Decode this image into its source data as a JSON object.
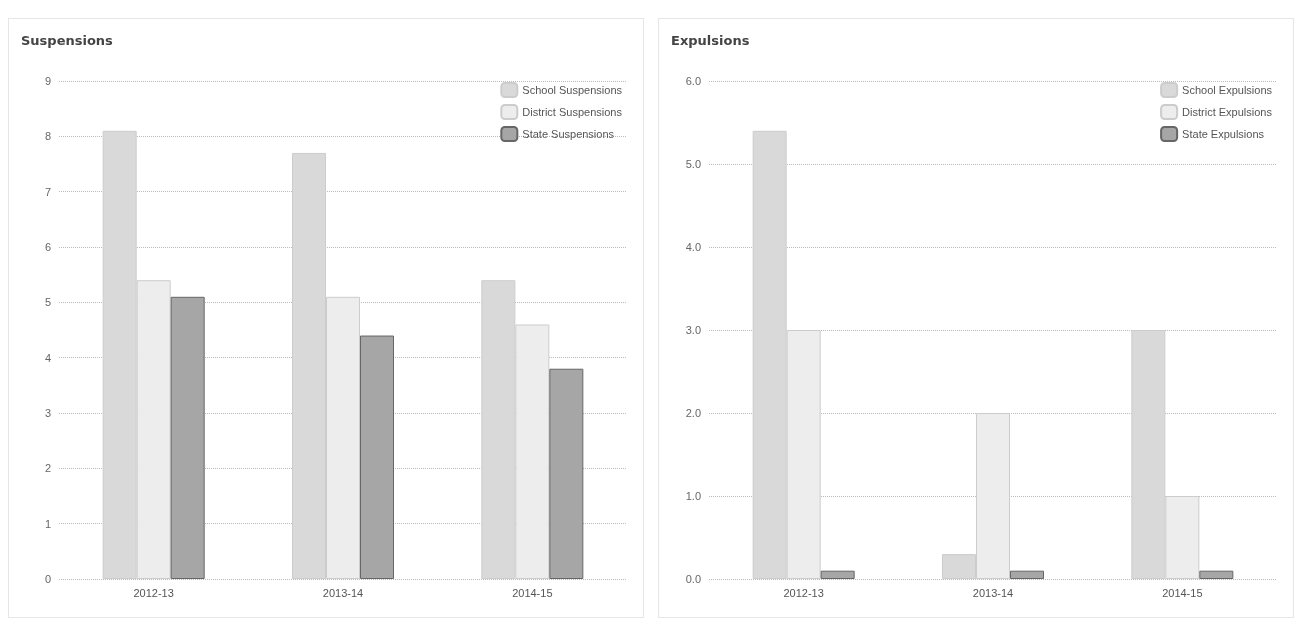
{
  "chart_data": [
    {
      "type": "bar",
      "title": "Suspensions",
      "categories": [
        "2012-13",
        "2013-14",
        "2014-15"
      ],
      "series": [
        {
          "name": "School Suspensions",
          "color": "#d9d9d9",
          "values": [
            8.1,
            7.7,
            5.4
          ]
        },
        {
          "name": "District Suspensions",
          "color": "#ededed",
          "values": [
            5.4,
            5.1,
            4.6
          ]
        },
        {
          "name": "State Suspensions",
          "color": "#a6a6a6",
          "values": [
            5.1,
            4.4,
            3.8
          ]
        }
      ],
      "ylim": [
        0,
        9
      ],
      "yticks": [
        0,
        1,
        2,
        3,
        4,
        5,
        6,
        7,
        8,
        9
      ],
      "grid": "y",
      "legend": "top right"
    },
    {
      "type": "bar",
      "title": "Expulsions",
      "categories": [
        "2012-13",
        "2013-14",
        "2014-15"
      ],
      "series": [
        {
          "name": "School Expulsions",
          "color": "#d9d9d9",
          "values": [
            5.4,
            0.3,
            3.0
          ]
        },
        {
          "name": "District Expulsions",
          "color": "#ededed",
          "values": [
            3.0,
            2.0,
            1.0
          ]
        },
        {
          "name": "State Expulsions",
          "color": "#a6a6a6",
          "values": [
            0.1,
            0.1,
            0.1
          ]
        }
      ],
      "ylim": [
        0,
        6
      ],
      "yticks": [
        {
          "value": 0,
          "label": "0.0"
        },
        {
          "value": 1,
          "label": "1.0"
        },
        {
          "value": 2,
          "label": "2.0"
        },
        {
          "value": 3,
          "label": "3.0"
        },
        {
          "value": 4,
          "label": "4.0"
        },
        {
          "value": 5,
          "label": "5.0"
        },
        {
          "value": 6,
          "label": "6.0"
        }
      ],
      "grid": "y",
      "legend": "top right"
    }
  ]
}
